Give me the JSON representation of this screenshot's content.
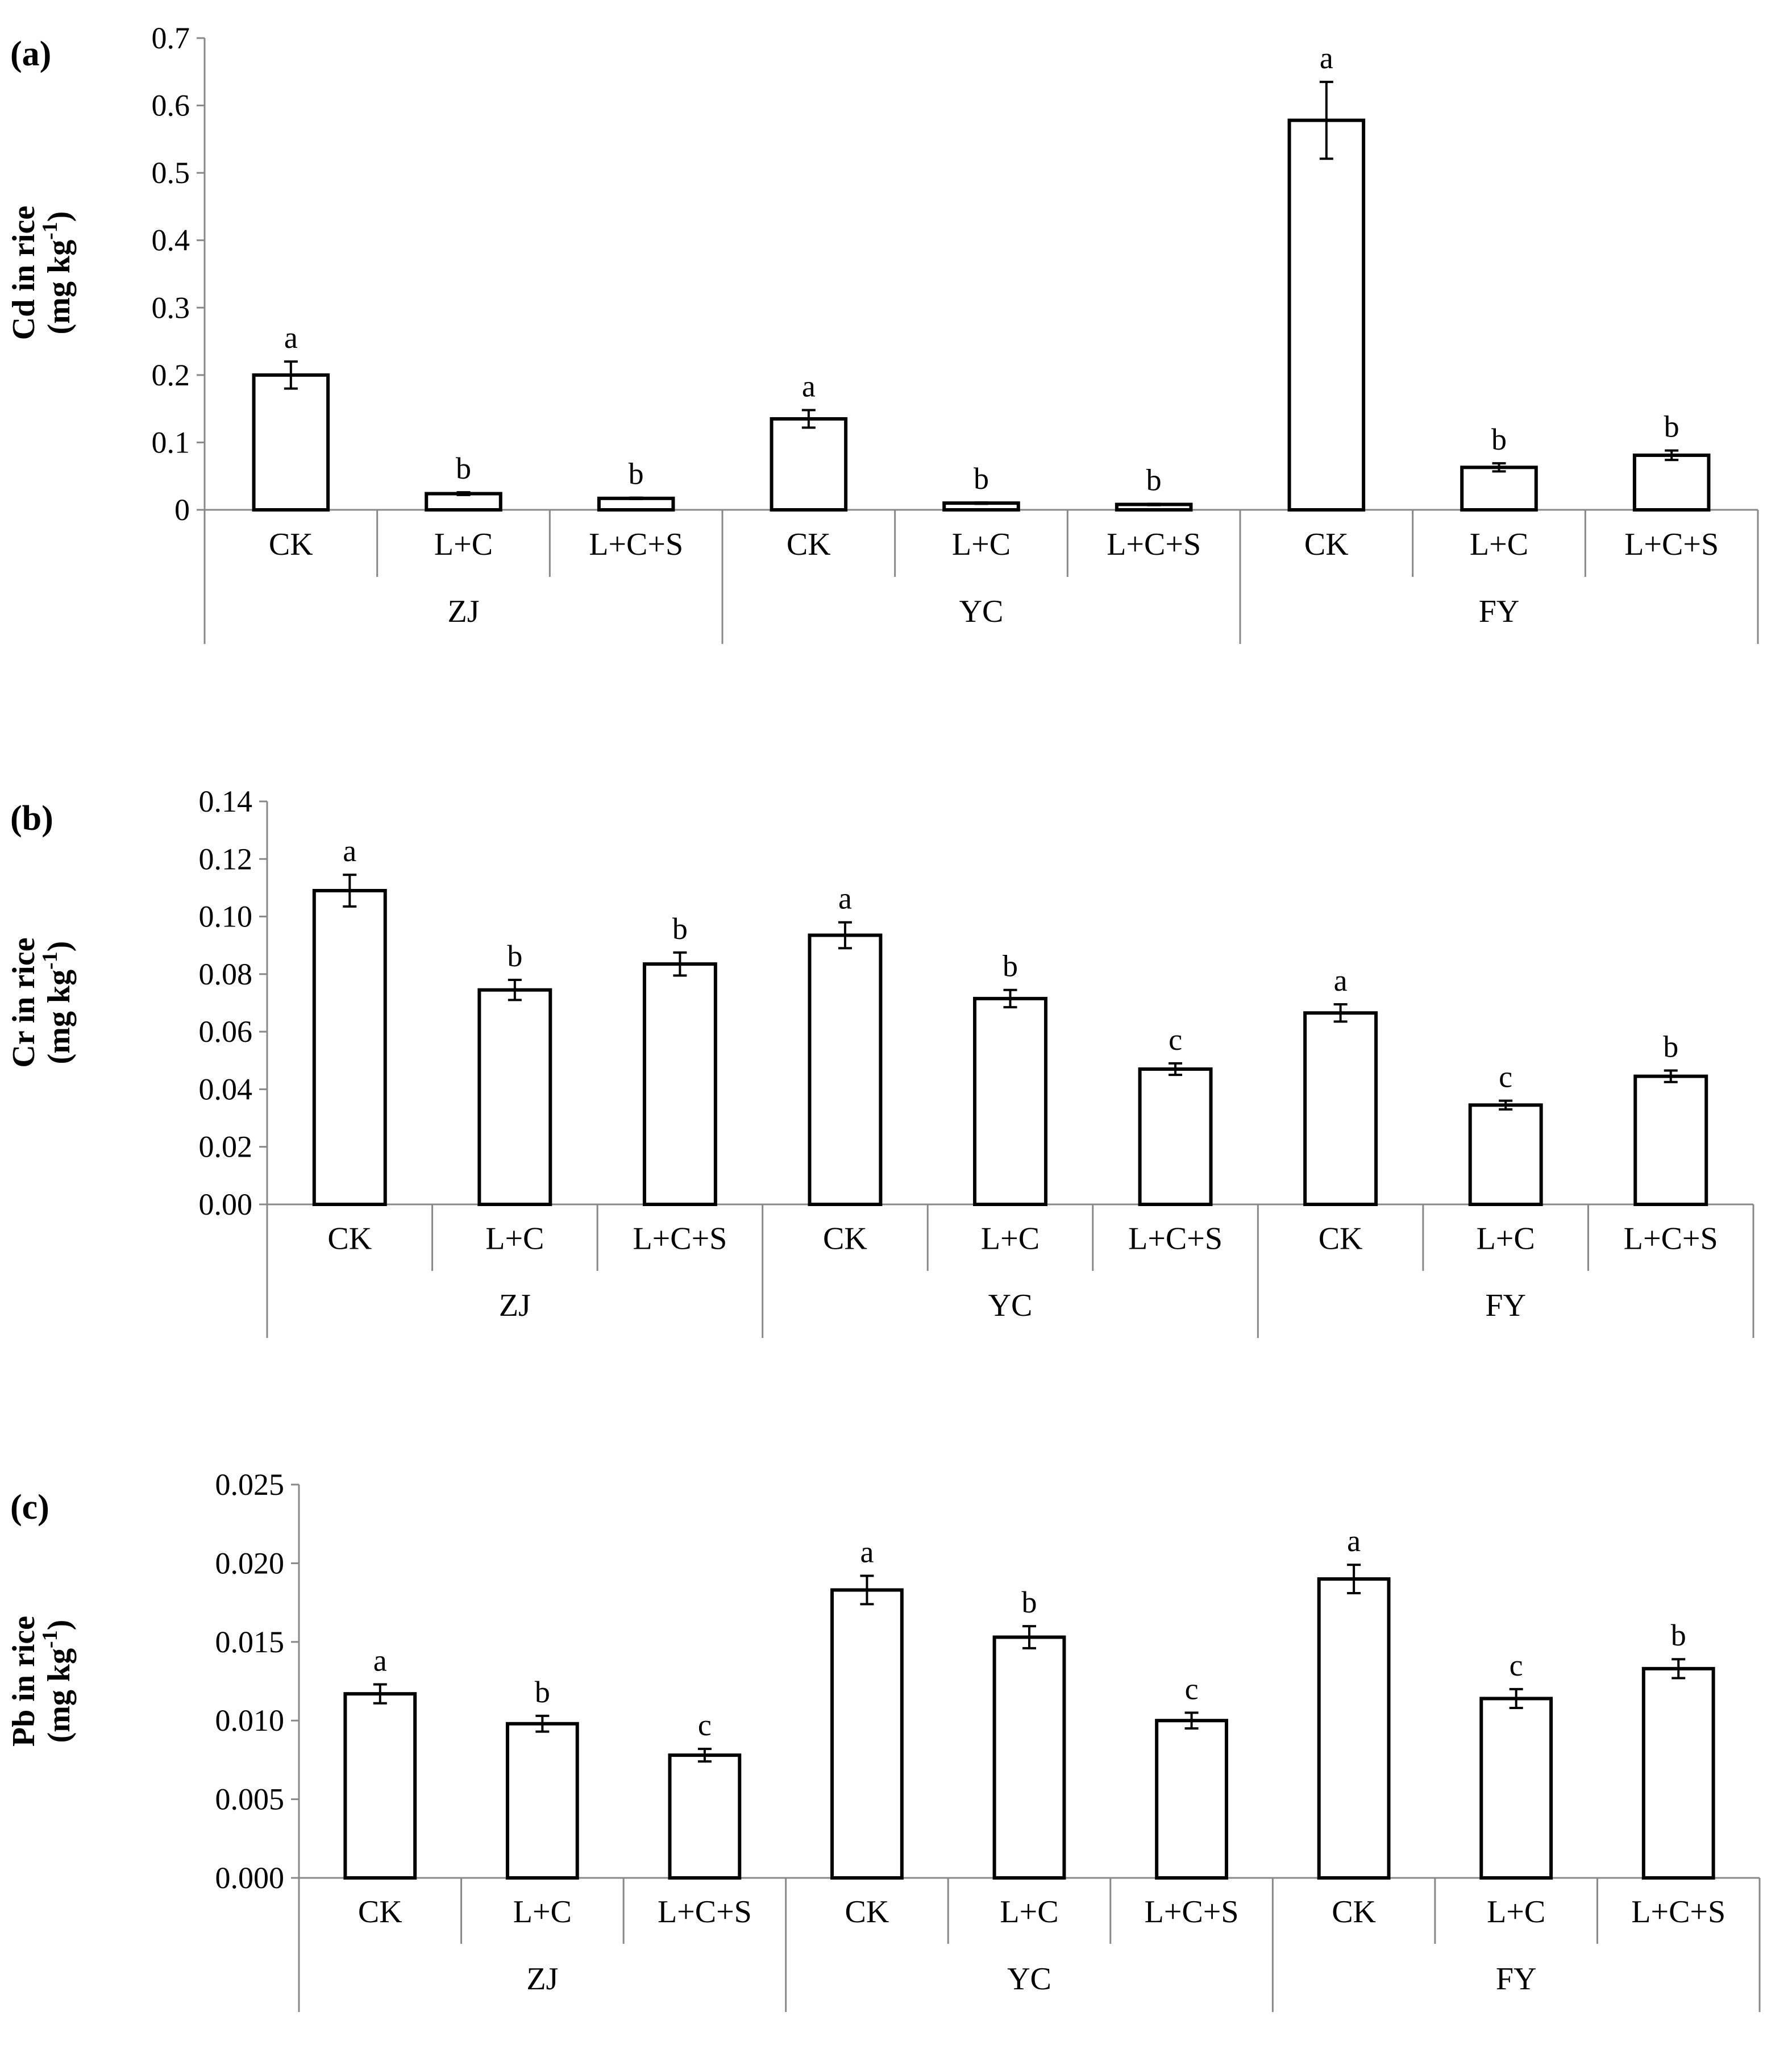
{
  "chart_data": [
    {
      "type": "bar",
      "panel_label": "(a)",
      "ylabel_line1": "Cd in rice",
      "ylabel_line2": "(mg kg",
      "ylabel_sup": "-1",
      "ylabel_close": ")",
      "ylim": [
        0,
        0.7
      ],
      "yticks": [
        "0",
        "0.1",
        "0.2",
        "0.3",
        "0.4",
        "0.5",
        "0.6",
        "0.7"
      ],
      "groups": [
        "ZJ",
        "YC",
        "FY"
      ],
      "categories": [
        "CK",
        "L+C",
        "L+C+S",
        "CK",
        "L+C",
        "L+C+S",
        "CK",
        "L+C",
        "L+C+S"
      ],
      "values": [
        0.2,
        0.024,
        0.017,
        0.135,
        0.01,
        0.008,
        0.578,
        0.063,
        0.081
      ],
      "errors": [
        0.02,
        0.002,
        0.001,
        0.013,
        0.001,
        0.001,
        0.057,
        0.006,
        0.007
      ],
      "significance": [
        "a",
        "b",
        "b",
        "a",
        "b",
        "b",
        "a",
        "b",
        "b"
      ]
    },
    {
      "type": "bar",
      "panel_label": "(b)",
      "ylabel_line1": "Cr in rice",
      "ylabel_line2": "(mg kg",
      "ylabel_sup": "-1",
      "ylabel_close": ")",
      "ylim": [
        0,
        0.14
      ],
      "yticks": [
        "0.00",
        "0.02",
        "0.04",
        "0.06",
        "0.08",
        "0.10",
        "0.12",
        "0.14"
      ],
      "groups": [
        "ZJ",
        "YC",
        "FY"
      ],
      "categories": [
        "CK",
        "L+C",
        "L+C+S",
        "CK",
        "L+C",
        "L+C+S",
        "CK",
        "L+C",
        "L+C+S"
      ],
      "values": [
        0.109,
        0.0745,
        0.0835,
        0.0935,
        0.0715,
        0.047,
        0.0665,
        0.0345,
        0.0445
      ],
      "errors": [
        0.0055,
        0.0035,
        0.004,
        0.0045,
        0.003,
        0.002,
        0.003,
        0.0015,
        0.002
      ],
      "significance": [
        "a",
        "b",
        "b",
        "a",
        "b",
        "c",
        "a",
        "c",
        "b"
      ]
    },
    {
      "type": "bar",
      "panel_label": "(c)",
      "ylabel_line1": "Pb in rice",
      "ylabel_line2": "(mg kg",
      "ylabel_sup": "-1",
      "ylabel_close": ")",
      "ylim": [
        0,
        0.025
      ],
      "yticks": [
        "0.000",
        "0.005",
        "0.010",
        "0.015",
        "0.020",
        "0.025"
      ],
      "groups": [
        "ZJ",
        "YC",
        "FY"
      ],
      "categories": [
        "CK",
        "L+C",
        "L+C+S",
        "CK",
        "L+C",
        "L+C+S",
        "CK",
        "L+C",
        "L+C+S"
      ],
      "values": [
        0.0117,
        0.0098,
        0.0078,
        0.0183,
        0.0153,
        0.01,
        0.019,
        0.0114,
        0.0133
      ],
      "errors": [
        0.0006,
        0.0005,
        0.0004,
        0.0009,
        0.0007,
        0.0005,
        0.0009,
        0.0006,
        0.0006
      ],
      "significance": [
        "a",
        "b",
        "c",
        "a",
        "b",
        "c",
        "a",
        "c",
        "b"
      ]
    }
  ]
}
